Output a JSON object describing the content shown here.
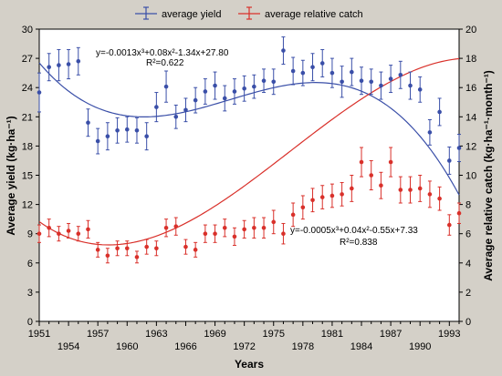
{
  "chart_data": {
    "type": "scatter",
    "x_axis": {
      "label": "Years",
      "range": [
        1951,
        1994
      ],
      "ticks_bottom": [
        "1951",
        "1957",
        "1963",
        "1969",
        "1975",
        "1981",
        "1987",
        "1993"
      ],
      "ticks_top": [
        "1954",
        "1960",
        "1966",
        "1972",
        "1978",
        "1984",
        "1990"
      ]
    },
    "y_axis_left": {
      "label": "Average yield (kg·ha⁻¹)",
      "range": [
        0,
        30
      ],
      "ticks": [
        0,
        3,
        6,
        9,
        12,
        15,
        18,
        21,
        24,
        27,
        30
      ]
    },
    "y_axis_right": {
      "label": "Average relative catch (kg·ha⁻¹·month⁻¹)",
      "range": [
        0,
        20
      ],
      "ticks": [
        0,
        2,
        4,
        6,
        8,
        10,
        12,
        14,
        16,
        18,
        20
      ]
    },
    "grid": false,
    "legend_position": "top-center",
    "series": [
      {
        "name": "average yield",
        "axis": "left",
        "color": "#3a4fa8",
        "points": [
          {
            "x": 1951,
            "y": 23.5,
            "err": 2.0
          },
          {
            "x": 1952,
            "y": 26.1,
            "err": 1.4
          },
          {
            "x": 1953,
            "y": 26.3,
            "err": 1.6
          },
          {
            "x": 1954,
            "y": 26.4,
            "err": 1.5
          },
          {
            "x": 1955,
            "y": 26.7,
            "err": 1.4
          },
          {
            "x": 1956,
            "y": 20.4,
            "err": 1.4
          },
          {
            "x": 1957,
            "y": 18.5,
            "err": 1.3
          },
          {
            "x": 1958,
            "y": 19.0,
            "err": 1.4
          },
          {
            "x": 1959,
            "y": 19.6,
            "err": 1.3
          },
          {
            "x": 1960,
            "y": 19.7,
            "err": 1.3
          },
          {
            "x": 1961,
            "y": 19.6,
            "err": 1.3
          },
          {
            "x": 1962,
            "y": 19.0,
            "err": 1.4
          },
          {
            "x": 1963,
            "y": 22.0,
            "err": 1.5
          },
          {
            "x": 1964,
            "y": 24.1,
            "err": 1.6
          },
          {
            "x": 1965,
            "y": 21.0,
            "err": 1.2
          },
          {
            "x": 1966,
            "y": 21.7,
            "err": 1.2
          },
          {
            "x": 1967,
            "y": 22.7,
            "err": 1.3
          },
          {
            "x": 1968,
            "y": 23.6,
            "err": 1.3
          },
          {
            "x": 1969,
            "y": 24.2,
            "err": 1.4
          },
          {
            "x": 1970,
            "y": 22.9,
            "err": 1.3
          },
          {
            "x": 1971,
            "y": 23.6,
            "err": 1.3
          },
          {
            "x": 1972,
            "y": 23.9,
            "err": 1.3
          },
          {
            "x": 1973,
            "y": 24.1,
            "err": 1.2
          },
          {
            "x": 1974,
            "y": 24.7,
            "err": 1.2
          },
          {
            "x": 1975,
            "y": 24.6,
            "err": 1.3
          },
          {
            "x": 1976,
            "y": 27.8,
            "err": 1.4
          },
          {
            "x": 1977,
            "y": 25.7,
            "err": 1.4
          },
          {
            "x": 1978,
            "y": 25.5,
            "err": 1.3
          },
          {
            "x": 1979,
            "y": 26.1,
            "err": 1.4
          },
          {
            "x": 1980,
            "y": 26.5,
            "err": 1.4
          },
          {
            "x": 1981,
            "y": 25.5,
            "err": 1.5
          },
          {
            "x": 1982,
            "y": 24.6,
            "err": 1.6
          },
          {
            "x": 1983,
            "y": 25.6,
            "err": 1.4
          },
          {
            "x": 1984,
            "y": 24.7,
            "err": 1.4
          },
          {
            "x": 1985,
            "y": 24.6,
            "err": 1.3
          },
          {
            "x": 1986,
            "y": 24.2,
            "err": 1.4
          },
          {
            "x": 1987,
            "y": 24.9,
            "err": 1.4
          },
          {
            "x": 1988,
            "y": 25.3,
            "err": 1.4
          },
          {
            "x": 1989,
            "y": 24.2,
            "err": 1.4
          },
          {
            "x": 1990,
            "y": 23.8,
            "err": 1.3
          },
          {
            "x": 1991,
            "y": 19.4,
            "err": 1.3
          },
          {
            "x": 1992,
            "y": 21.5,
            "err": 1.4
          },
          {
            "x": 1993,
            "y": 16.5,
            "err": 1.4
          },
          {
            "x": 1994,
            "y": 17.8,
            "err": 1.4
          }
        ],
        "trend": {
          "equation": "y=-0.0013x³+0.08x²-1.34x+27.80",
          "r2": "R²=0.622"
        }
      },
      {
        "name": "average relative catch",
        "axis": "right",
        "color": "#d9302a",
        "points": [
          {
            "x": 1951,
            "y": 6.0,
            "err": 0.6
          },
          {
            "x": 1952,
            "y": 6.4,
            "err": 0.6
          },
          {
            "x": 1953,
            "y": 6.0,
            "err": 0.5
          },
          {
            "x": 1954,
            "y": 6.2,
            "err": 0.5
          },
          {
            "x": 1955,
            "y": 6.0,
            "err": 0.5
          },
          {
            "x": 1956,
            "y": 6.3,
            "err": 0.6
          },
          {
            "x": 1957,
            "y": 4.9,
            "err": 0.5
          },
          {
            "x": 1958,
            "y": 4.5,
            "err": 0.5
          },
          {
            "x": 1959,
            "y": 5.0,
            "err": 0.5
          },
          {
            "x": 1960,
            "y": 5.0,
            "err": 0.5
          },
          {
            "x": 1961,
            "y": 4.4,
            "err": 0.4
          },
          {
            "x": 1962,
            "y": 5.1,
            "err": 0.5
          },
          {
            "x": 1963,
            "y": 5.0,
            "err": 0.5
          },
          {
            "x": 1964,
            "y": 6.4,
            "err": 0.6
          },
          {
            "x": 1965,
            "y": 6.5,
            "err": 0.6
          },
          {
            "x": 1966,
            "y": 5.1,
            "err": 0.5
          },
          {
            "x": 1967,
            "y": 4.9,
            "err": 0.5
          },
          {
            "x": 1968,
            "y": 6.0,
            "err": 0.6
          },
          {
            "x": 1969,
            "y": 6.0,
            "err": 0.6
          },
          {
            "x": 1970,
            "y": 6.4,
            "err": 0.6
          },
          {
            "x": 1971,
            "y": 5.8,
            "err": 0.6
          },
          {
            "x": 1972,
            "y": 6.3,
            "err": 0.6
          },
          {
            "x": 1973,
            "y": 6.4,
            "err": 0.7
          },
          {
            "x": 1974,
            "y": 6.4,
            "err": 0.7
          },
          {
            "x": 1975,
            "y": 6.8,
            "err": 0.8
          },
          {
            "x": 1976,
            "y": 6.0,
            "err": 0.7
          },
          {
            "x": 1977,
            "y": 7.3,
            "err": 0.8
          },
          {
            "x": 1978,
            "y": 7.8,
            "err": 0.8
          },
          {
            "x": 1979,
            "y": 8.3,
            "err": 0.8
          },
          {
            "x": 1980,
            "y": 8.5,
            "err": 0.8
          },
          {
            "x": 1981,
            "y": 8.6,
            "err": 0.8
          },
          {
            "x": 1982,
            "y": 8.7,
            "err": 0.8
          },
          {
            "x": 1983,
            "y": 9.1,
            "err": 0.9
          },
          {
            "x": 1984,
            "y": 10.9,
            "err": 1.0
          },
          {
            "x": 1985,
            "y": 10.0,
            "err": 1.0
          },
          {
            "x": 1986,
            "y": 9.3,
            "err": 0.9
          },
          {
            "x": 1987,
            "y": 10.9,
            "err": 1.0
          },
          {
            "x": 1988,
            "y": 9.0,
            "err": 0.9
          },
          {
            "x": 1989,
            "y": 9.0,
            "err": 0.9
          },
          {
            "x": 1990,
            "y": 9.1,
            "err": 0.9
          },
          {
            "x": 1991,
            "y": 8.7,
            "err": 0.9
          },
          {
            "x": 1992,
            "y": 8.4,
            "err": 0.8
          },
          {
            "x": 1993,
            "y": 6.6,
            "err": 0.7
          },
          {
            "x": 1994,
            "y": 7.4,
            "err": 0.7
          }
        ],
        "trend": {
          "equation": "y=-0.0005x³+0.04x²-0.55x+7.33",
          "r2": "R²=0.838"
        }
      }
    ]
  }
}
